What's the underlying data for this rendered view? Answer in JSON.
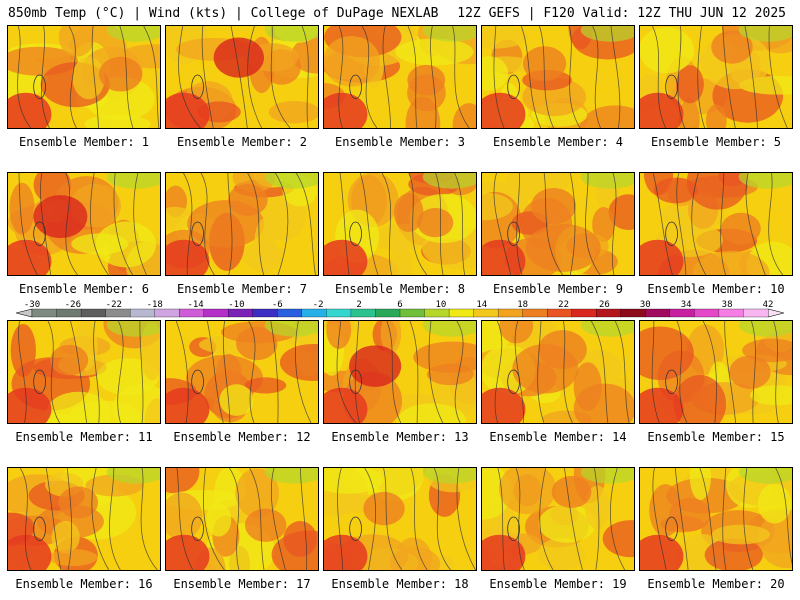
{
  "header": {
    "left": "850mb Temp (°C) | Wind (kts) | College of DuPage NEXLAB",
    "right": "12Z GEFS | F120 Valid: 12Z THU JUN 12 2025"
  },
  "colorbar": {
    "labels": [
      "-30",
      "-26",
      "-22",
      "-18",
      "-14",
      "-10",
      "-6",
      "-2",
      "2",
      "6",
      "10",
      "14",
      "18",
      "22",
      "26",
      "30",
      "34",
      "38",
      "42"
    ],
    "colors": [
      "#7e8a80",
      "#6f7a70",
      "#5e5e5e",
      "#8c8c8c",
      "#b7b7cf",
      "#cfa4e0",
      "#d05cd8",
      "#b32fc7",
      "#7a21b8",
      "#3c2ec5",
      "#2a5fe0",
      "#25b0e8",
      "#33d7d0",
      "#2bc28e",
      "#2aa85a",
      "#6fbf3a",
      "#b5d72c",
      "#f0e916",
      "#f3c81c",
      "#f2a41f",
      "#ee7f20",
      "#e85522",
      "#d9261e",
      "#b4141b",
      "#8c0a1a",
      "#a00a5e",
      "#c81fa0",
      "#e447c8",
      "#f47ee4",
      "#f7b6f0"
    ]
  },
  "members": [
    {
      "label": "Ensemble Member: 1",
      "hot": 0.55
    },
    {
      "label": "Ensemble Member: 2",
      "hot": 0.75
    },
    {
      "label": "Ensemble Member: 3",
      "hot": 0.4
    },
    {
      "label": "Ensemble Member: 4",
      "hot": 0.55
    },
    {
      "label": "Ensemble Member: 5",
      "hot": 0.5
    },
    {
      "label": "Ensemble Member: 6",
      "hot": 0.85
    },
    {
      "label": "Ensemble Member: 7",
      "hot": 0.45
    },
    {
      "label": "Ensemble Member: 8",
      "hot": 0.35
    },
    {
      "label": "Ensemble Member: 9",
      "hot": 0.6
    },
    {
      "label": "Ensemble Member: 10",
      "hot": 0.45
    },
    {
      "label": "Ensemble Member: 11",
      "hot": 0.4
    },
    {
      "label": "Ensemble Member: 12",
      "hot": 0.5
    },
    {
      "label": "Ensemble Member: 13",
      "hot": 0.8
    },
    {
      "label": "Ensemble Member: 14",
      "hot": 0.7
    },
    {
      "label": "Ensemble Member: 15",
      "hot": 0.5
    },
    {
      "label": "Ensemble Member: 16",
      "hot": 0.45
    },
    {
      "label": "Ensemble Member: 17",
      "hot": 0.5
    },
    {
      "label": "Ensemble Member: 18",
      "hot": 0.5
    },
    {
      "label": "Ensemble Member: 19",
      "hot": 0.45
    },
    {
      "label": "Ensemble Member: 20",
      "hot": 0.5
    }
  ]
}
